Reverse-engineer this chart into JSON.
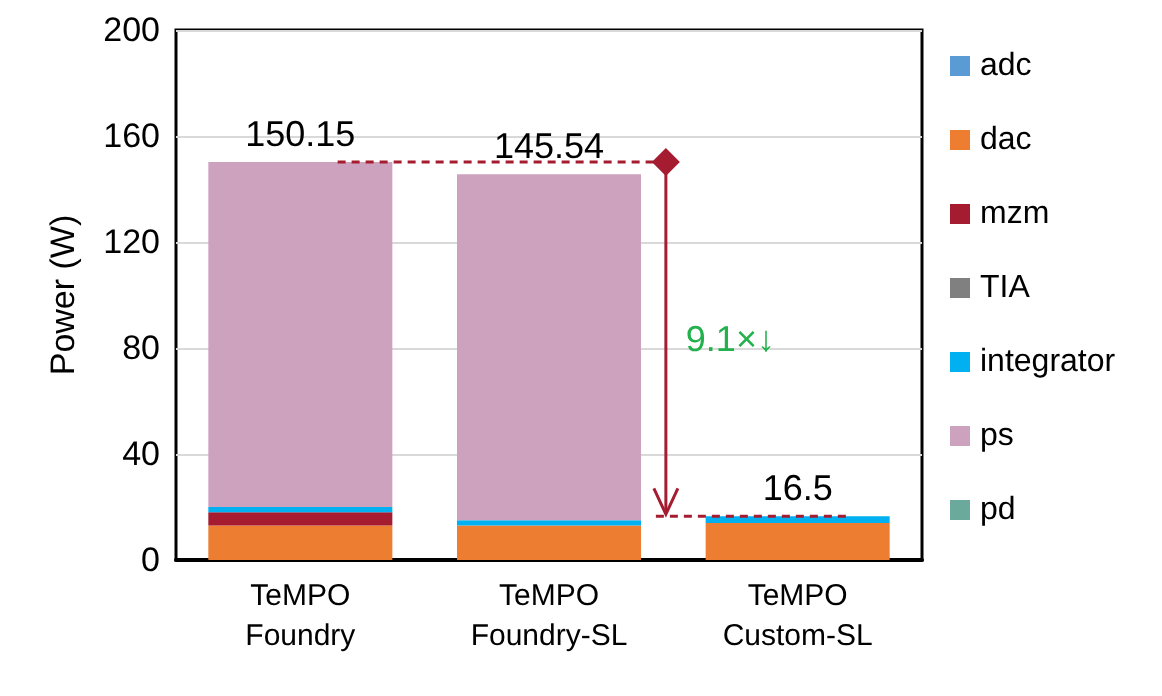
{
  "chart_data": {
    "type": "bar",
    "stacked": true,
    "ylabel": "Power (W)",
    "categories": [
      "TeMPO\nFoundry",
      "TeMPO\nFoundry-SL",
      "TeMPO\nCustom-SL"
    ],
    "series": [
      {
        "name": "adc",
        "color": "#5b9bd5",
        "values": [
          0,
          0,
          0
        ]
      },
      {
        "name": "dac",
        "color": "#ed7d31",
        "values": [
          13,
          13,
          14
        ]
      },
      {
        "name": "mzm",
        "color": "#a51c30",
        "values": [
          5,
          0,
          0
        ]
      },
      {
        "name": "TIA",
        "color": "#808080",
        "values": [
          0,
          0,
          0
        ]
      },
      {
        "name": "integrator",
        "color": "#00b0f0",
        "values": [
          2,
          2,
          2.5
        ]
      },
      {
        "name": "ps",
        "color": "#cda2be",
        "values": [
          130.15,
          130.54,
          0
        ]
      },
      {
        "name": "pd",
        "color": "#6aa99b",
        "values": [
          0,
          0,
          0
        ]
      }
    ],
    "totals": [
      "150.15",
      "145.54",
      "16.5"
    ],
    "annotations": [
      "9.1×↓"
    ],
    "ylim": [
      0,
      200
    ],
    "yticks": [
      0,
      40,
      80,
      120,
      160,
      200
    ],
    "grid": "y",
    "legend": "right"
  }
}
